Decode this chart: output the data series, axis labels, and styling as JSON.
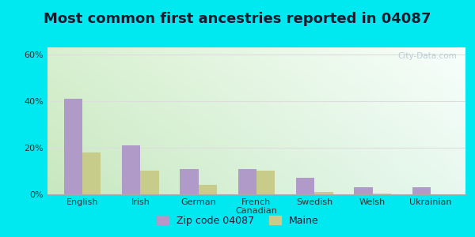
{
  "title": "Most common first ancestries reported in 04087",
  "categories": [
    "English",
    "Irish",
    "German",
    "French\nCanadian",
    "Swedish",
    "Welsh",
    "Ukrainian"
  ],
  "zip_values": [
    41,
    21,
    11,
    11,
    7,
    3,
    3
  ],
  "maine_values": [
    18,
    10,
    4,
    10,
    1,
    0.5,
    0
  ],
  "zip_color": "#b09ac8",
  "maine_color": "#c8cc8a",
  "legend_zip": "Zip code 04087",
  "legend_maine": "Maine",
  "yticks": [
    0,
    20,
    40,
    60
  ],
  "ytick_labels": [
    "0%",
    "20%",
    "40%",
    "60%"
  ],
  "ylim": [
    0,
    63
  ],
  "bg_outer": "#00e8f0",
  "bg_top_left": "#d8f0d0",
  "bg_top_right": "#f8fffc",
  "bg_bottom_left": "#c8e8c0",
  "bg_bottom_right": "#e8f8f0",
  "title_fontsize": 13,
  "title_color": "#1a1a2e",
  "watermark": "City-Data.com",
  "grid_color": "#dddddd",
  "bar_width": 0.32
}
